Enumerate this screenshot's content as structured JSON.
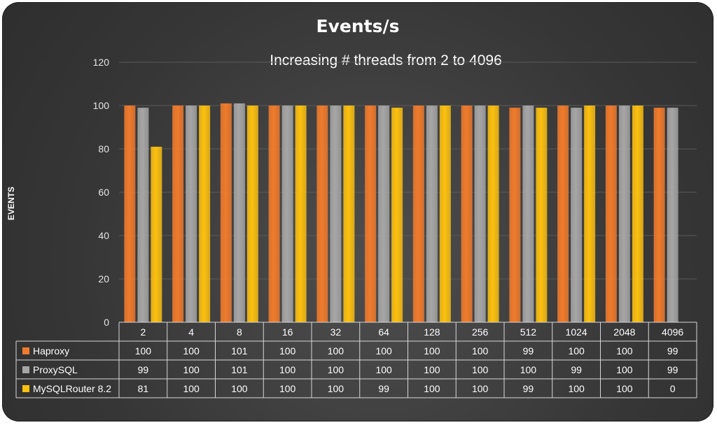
{
  "chart_data": {
    "type": "bar",
    "title": "Events/s",
    "subtitle": "Increasing # threads from 2 to 4096",
    "ylabel": "EVENTS",
    "xlabel": "",
    "ylim": [
      0,
      120
    ],
    "yticks": [
      0,
      20,
      40,
      60,
      80,
      100,
      120
    ],
    "grid": true,
    "legend": "data-table-left",
    "categories": [
      "2",
      "4",
      "8",
      "16",
      "32",
      "64",
      "128",
      "256",
      "512",
      "1024",
      "2048",
      "4096"
    ],
    "series": [
      {
        "name": "Haproxy",
        "color": "#f07b2c",
        "values": [
          100,
          100,
          101,
          100,
          100,
          100,
          100,
          100,
          99,
          100,
          100,
          99
        ],
        "labels": [
          "100",
          "100",
          "101",
          "100",
          "100",
          "100",
          "100",
          "100",
          "99",
          "100",
          "100",
          "99"
        ]
      },
      {
        "name": "ProxySQL",
        "color": "#a6a6a6",
        "values": [
          99,
          100,
          101,
          100,
          100,
          100,
          100,
          100,
          100,
          99,
          100,
          99
        ],
        "labels": [
          "99",
          "100",
          "101",
          "100",
          "100",
          "100",
          "100",
          "100",
          "100",
          "99",
          "100",
          "99"
        ]
      },
      {
        "name": "MySQLRouter 8.2",
        "color": "#fcc010",
        "values": [
          81,
          100,
          100,
          100,
          100,
          99,
          100,
          100,
          99,
          100,
          100,
          0
        ],
        "labels": [
          "81",
          "100",
          "100",
          "100",
          "100",
          "99",
          "100",
          "100",
          "99",
          "100",
          "100",
          "0"
        ]
      }
    ]
  }
}
